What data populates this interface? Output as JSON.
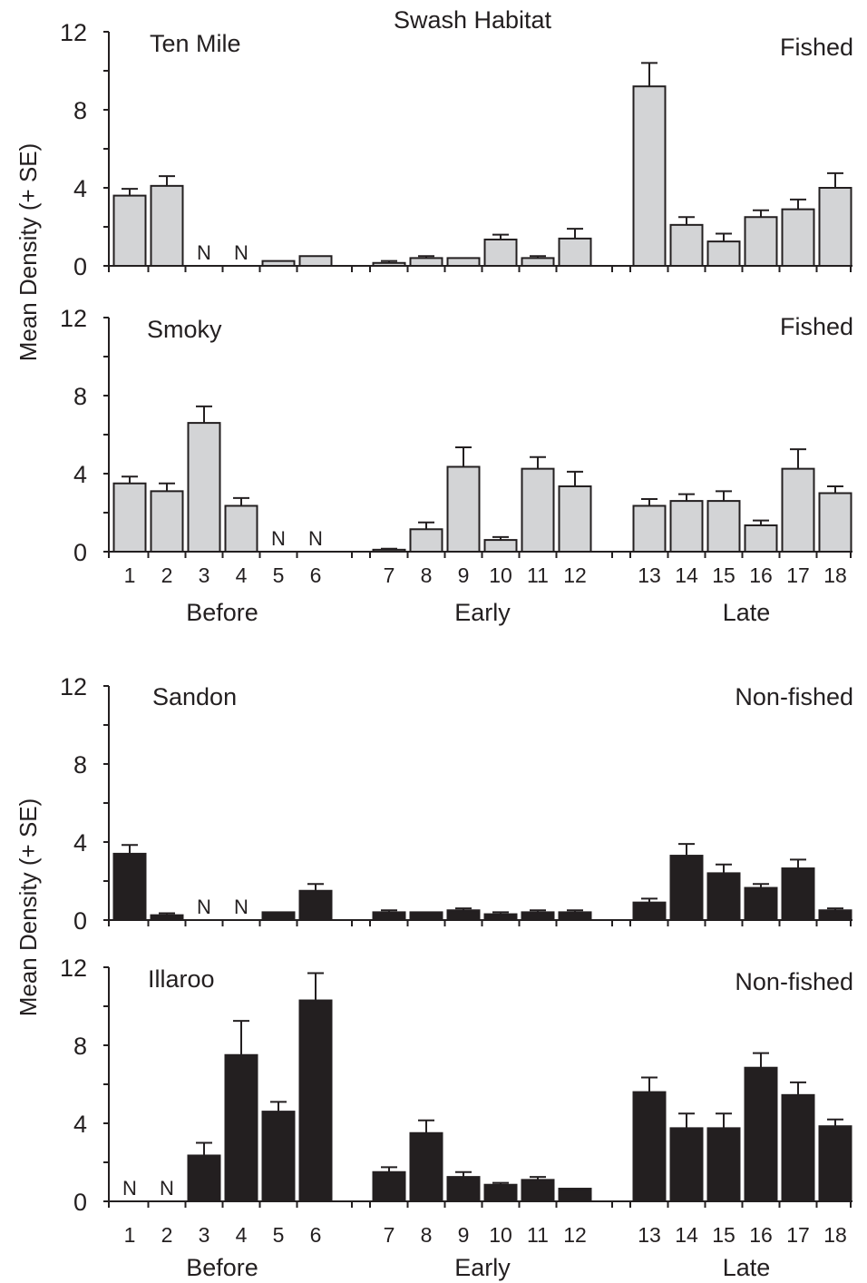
{
  "figure": {
    "title": "Swash Habitat",
    "ylabel": "Mean Density (+ SE)",
    "periods": [
      "Before",
      "Early",
      "Late"
    ],
    "missing_marker": "N",
    "colors": {
      "fished": "#d3d4d6",
      "non_fished": "#231f20",
      "outline": "#231f20"
    }
  },
  "chart_data": [
    {
      "type": "bar",
      "panel": "Ten Mile",
      "status": "Fished",
      "categories": [
        "1",
        "2",
        "3",
        "4",
        "5",
        "6",
        "7",
        "8",
        "9",
        "10",
        "11",
        "12",
        "13",
        "14",
        "15",
        "16",
        "17",
        "18"
      ],
      "values": [
        3.6,
        4.1,
        null,
        null,
        0.25,
        0.5,
        0.15,
        0.4,
        0.4,
        1.35,
        0.4,
        1.4,
        9.2,
        2.1,
        1.25,
        2.5,
        2.9,
        4.0
      ],
      "errors": [
        0.35,
        0.5,
        null,
        null,
        0.0,
        0.0,
        0.1,
        0.1,
        0.0,
        0.25,
        0.1,
        0.5,
        1.2,
        0.4,
        0.4,
        0.35,
        0.5,
        0.75
      ],
      "missing": [
        "3",
        "4"
      ],
      "ylim": [
        0,
        12
      ],
      "yticks": [
        0,
        4,
        8,
        12
      ],
      "grid": false
    },
    {
      "type": "bar",
      "panel": "Smoky",
      "status": "Fished",
      "categories": [
        "1",
        "2",
        "3",
        "4",
        "5",
        "6",
        "7",
        "8",
        "9",
        "10",
        "11",
        "12",
        "13",
        "14",
        "15",
        "16",
        "17",
        "18"
      ],
      "values": [
        3.5,
        3.1,
        6.6,
        2.35,
        null,
        null,
        0.1,
        1.15,
        4.35,
        0.6,
        4.25,
        3.35,
        2.35,
        2.6,
        2.6,
        1.35,
        4.25,
        3.0
      ],
      "errors": [
        0.35,
        0.4,
        0.85,
        0.4,
        null,
        null,
        0.05,
        0.35,
        1.0,
        0.15,
        0.6,
        0.75,
        0.35,
        0.35,
        0.5,
        0.25,
        1.0,
        0.35
      ],
      "missing": [
        "5",
        "6"
      ],
      "ylim": [
        0,
        12
      ],
      "yticks": [
        0,
        4,
        8,
        12
      ],
      "grid": false
    },
    {
      "type": "bar",
      "panel": "Sandon",
      "status": "Non-fished",
      "categories": [
        "1",
        "2",
        "3",
        "4",
        "5",
        "6",
        "7",
        "8",
        "9",
        "10",
        "11",
        "12",
        "13",
        "14",
        "15",
        "16",
        "17",
        "18"
      ],
      "values": [
        3.4,
        0.25,
        null,
        null,
        0.4,
        1.5,
        0.4,
        0.4,
        0.5,
        0.3,
        0.4,
        0.4,
        0.9,
        3.3,
        2.4,
        1.65,
        2.65,
        0.5
      ],
      "errors": [
        0.45,
        0.1,
        null,
        null,
        0.0,
        0.35,
        0.1,
        0.0,
        0.1,
        0.1,
        0.1,
        0.1,
        0.2,
        0.6,
        0.45,
        0.2,
        0.45,
        0.1
      ],
      "missing": [
        "3",
        "4"
      ],
      "ylim": [
        0,
        12
      ],
      "yticks": [
        0,
        4,
        8,
        12
      ],
      "grid": false
    },
    {
      "type": "bar",
      "panel": "Illaroo",
      "status": "Non-fished",
      "categories": [
        "1",
        "2",
        "3",
        "4",
        "5",
        "6",
        "7",
        "8",
        "9",
        "10",
        "11",
        "12",
        "13",
        "14",
        "15",
        "16",
        "17",
        "18"
      ],
      "values": [
        null,
        null,
        2.35,
        7.5,
        4.6,
        10.3,
        1.5,
        3.5,
        1.25,
        0.85,
        1.1,
        0.65,
        5.6,
        3.75,
        3.75,
        6.85,
        5.45,
        3.85
      ],
      "errors": [
        null,
        null,
        0.65,
        1.75,
        0.5,
        1.4,
        0.25,
        0.65,
        0.25,
        0.1,
        0.15,
        0.0,
        0.75,
        0.75,
        0.75,
        0.75,
        0.65,
        0.35
      ],
      "missing": [
        "1",
        "2"
      ],
      "ylim": [
        0,
        12
      ],
      "yticks": [
        0,
        4,
        8,
        12
      ],
      "grid": false
    }
  ]
}
